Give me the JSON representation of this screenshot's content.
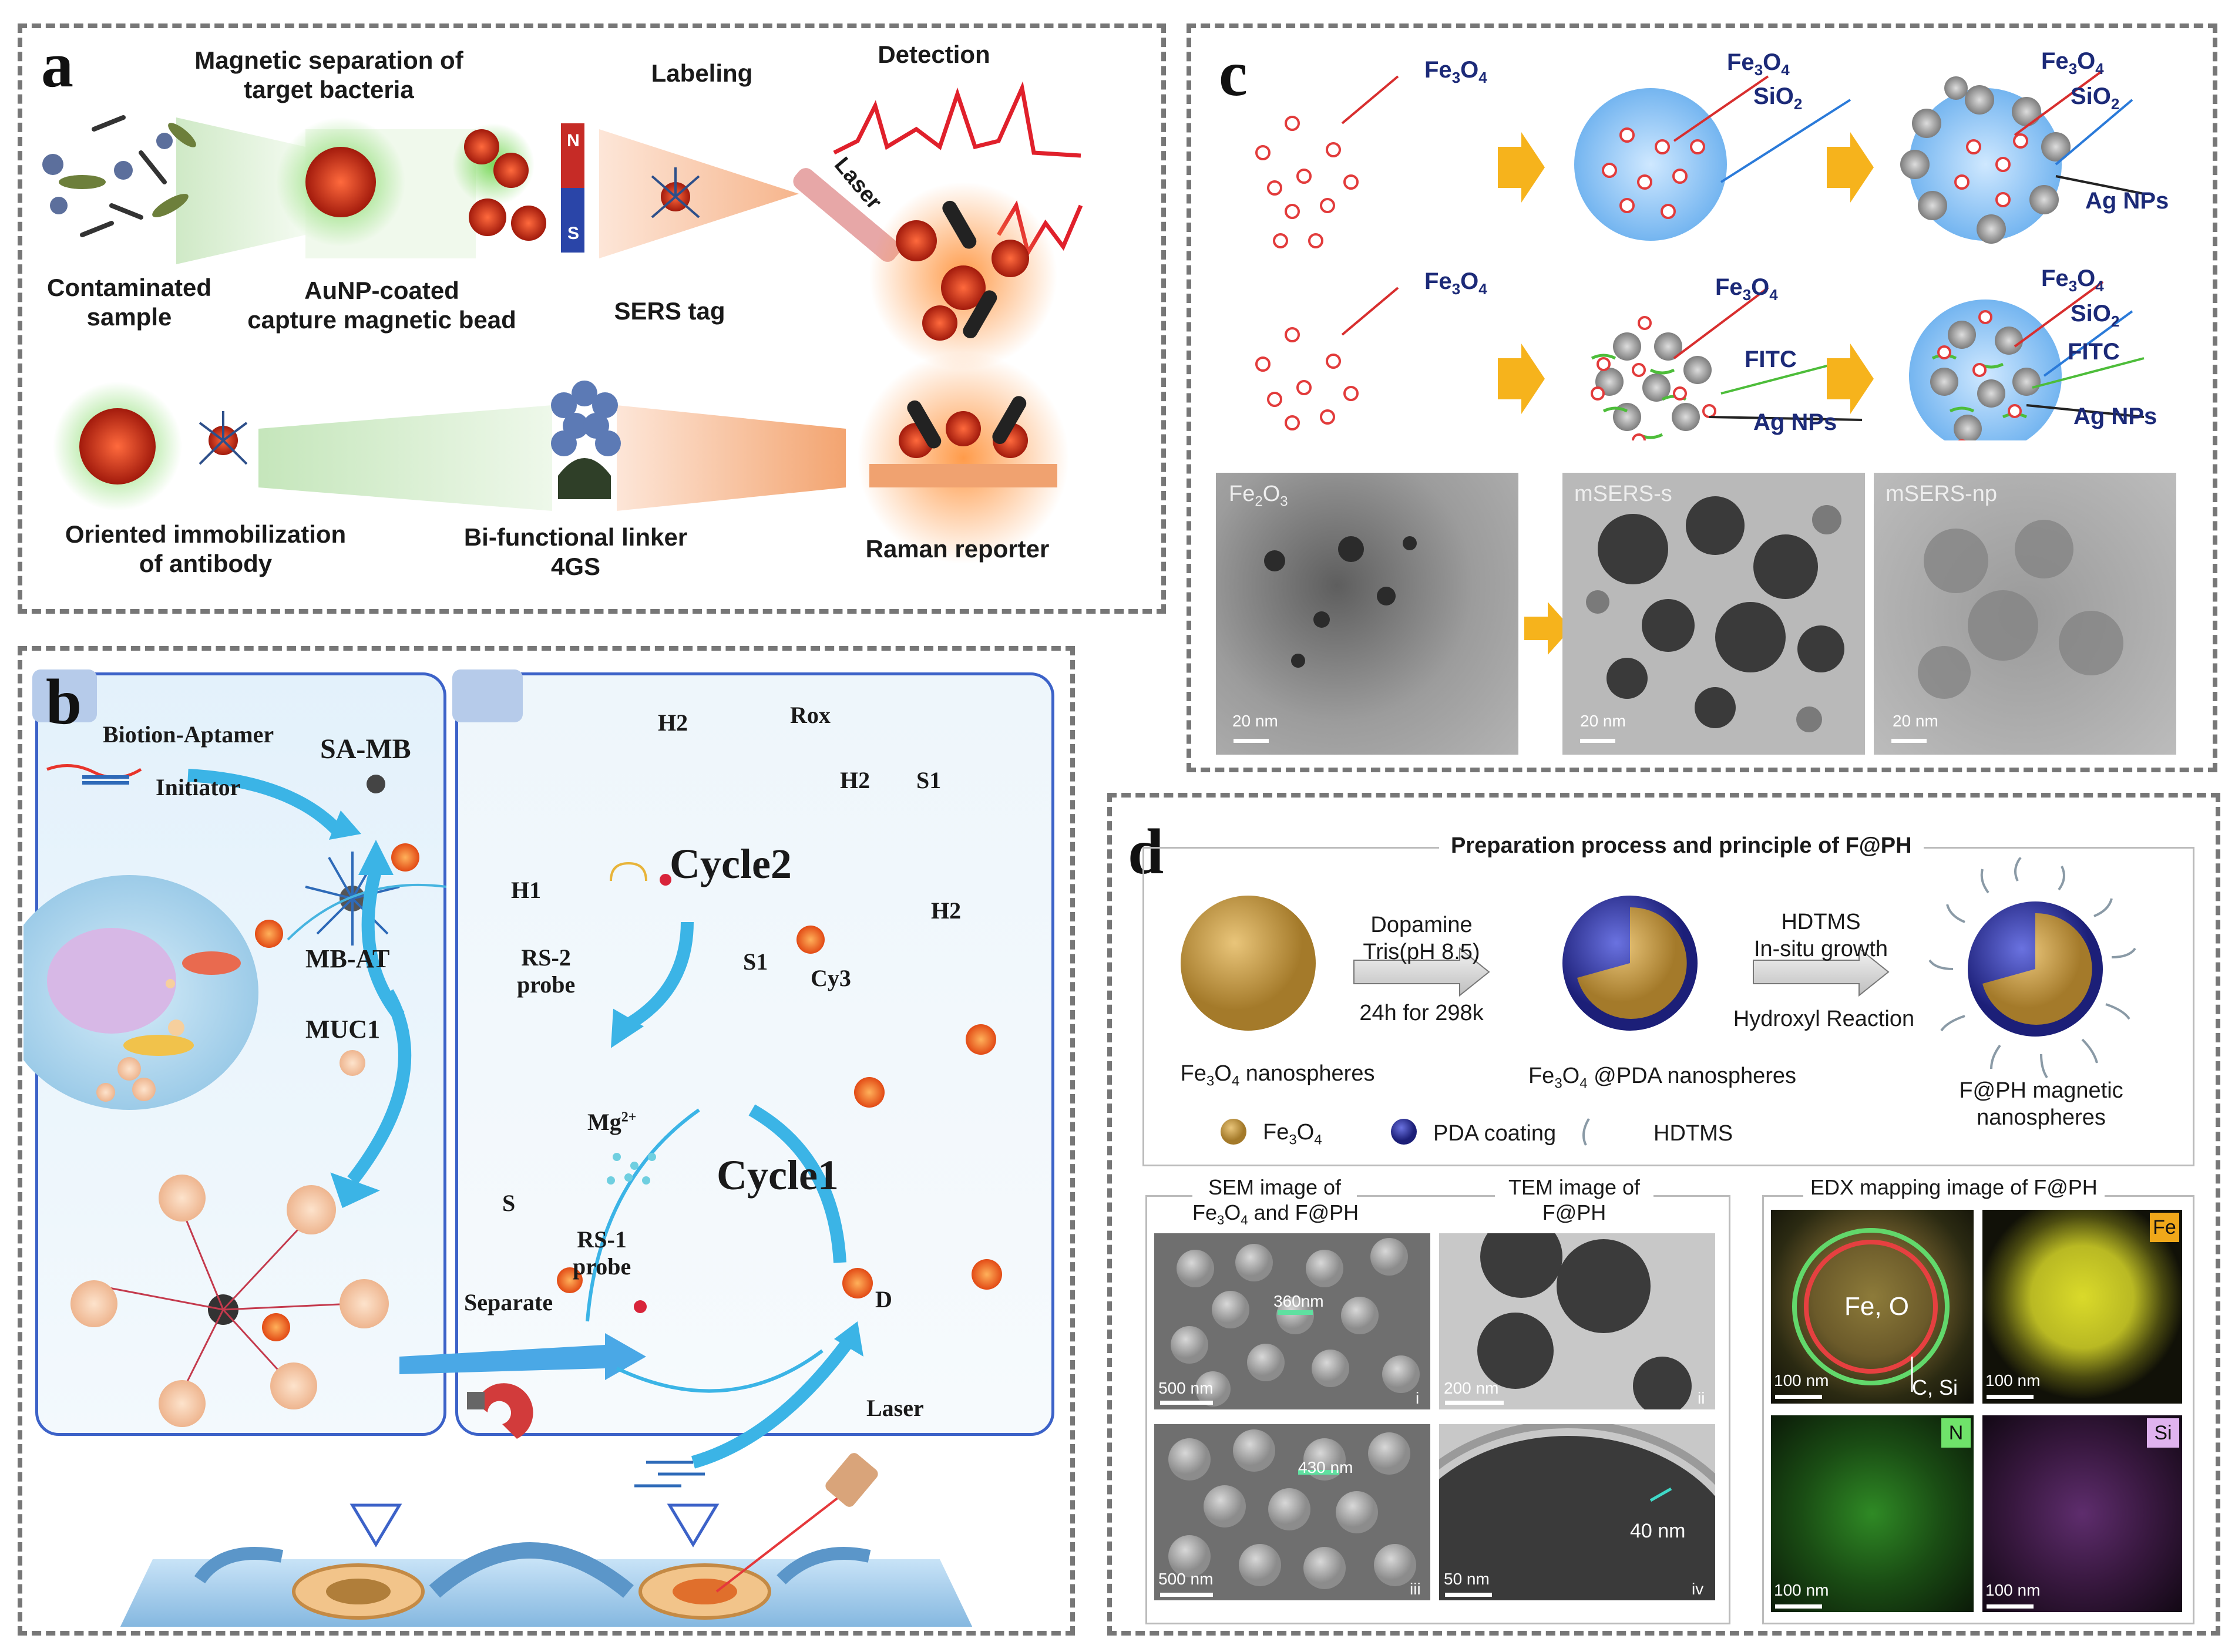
{
  "panel_a": {
    "label": "a",
    "magnetic_separation": "Magnetic separation of\ntarget bacteria",
    "labeling": "Labeling",
    "detection": "Detection",
    "laser": "Laser",
    "contaminated": "Contaminated\nsample",
    "aunp_bead": "AuNP-coated\ncapture magnetic bead",
    "sers_tag": "SERS tag",
    "oriented": "Oriented immobilization\nof antibody",
    "linker": "Bi-functional linker\n4GS",
    "raman": "Raman reporter",
    "magnet_n": "N",
    "magnet_s": "S"
  },
  "panel_b": {
    "label": "b",
    "biotion_aptamer": "Biotion-Aptamer",
    "initiator": "Initiator",
    "sa_mb": "SA-MB",
    "mb_at": "MB-AT",
    "muc1": "MUC1",
    "separate": "Separate",
    "h2_top": "H2",
    "rox": "Rox",
    "h2_mid": "H2",
    "s1_top": "S1",
    "cycle2": "Cycle2",
    "h1": "H1",
    "rs2": "RS-2\nprobe",
    "h2_right": "H2",
    "s1_mid": "S1",
    "cy3": "Cy3",
    "mg": "Mg",
    "mg_sup": "2+",
    "cycle1": "Cycle1",
    "s": "S",
    "rs1": "RS-1\nprobe",
    "d": "D",
    "laser": "Laser"
  },
  "panel_c": {
    "label": "c",
    "fe3o4": "Fe",
    "sub3": "3",
    "o": "O",
    "sub4": "4",
    "sio2": "SiO",
    "sub2": "2",
    "ag_nps": "Ag NPs",
    "fitc": "FITC",
    "tem1_title": "Fe",
    "tem1_sub": "2",
    "tem1_o": "O",
    "tem1_sub2": "3",
    "tem2_title": "mSERS-s",
    "tem3_title": "mSERS-np",
    "scale": "20 nm"
  },
  "panel_d": {
    "label": "d",
    "section_title": "Preparation process and principle of  F@PH",
    "dopamine": "Dopamine\nTris(pH 8.5)",
    "time": "24h for 298k",
    "hdtms_step": "HDTMS\nIn-situ growth",
    "hydroxyl": "Hydroxyl Reaction",
    "fe3o4_ns": " nanospheres",
    "pda_ns": " @PDA nanospheres",
    "fph_ns": "F@PH magnetic\nnanospheres",
    "legend_fe3o4": "Fe",
    "legend_pda": "PDA coating",
    "legend_hdtms": "HDTMS",
    "sem_title": "SEM image of",
    "sem_title2": " and F@PH",
    "tem_title": "TEM image of\nF@PH",
    "edx_title": "EDX mapping image of  F@PH",
    "sem1_scale": "500 nm",
    "sem1_meas": "360nm",
    "sem1_idx": "i",
    "tem1_scale": "200 nm",
    "tem1_idx": "ii",
    "sem2_scale": "500 nm",
    "sem2_meas": "430 nm",
    "sem2_idx": "iii",
    "tem2_scale": "50 nm",
    "tem2_meas": "40 nm",
    "tem2_idx": "iv",
    "edx1_label": "Fe, O",
    "edx1_sub": "C, Si",
    "edx_scale": "100 nm",
    "edx_fe": "Fe",
    "edx_n": "N",
    "edx_si": "Si"
  }
}
